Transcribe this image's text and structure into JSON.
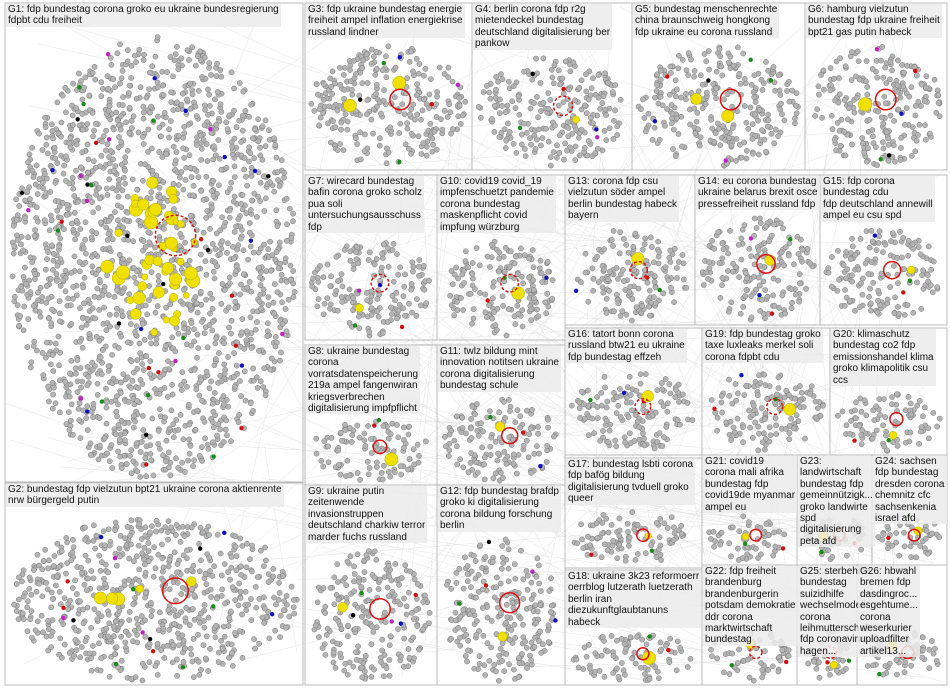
{
  "groups": [
    {
      "lines": [
        "G1: fdp bundestag corona groko eu ukraine bundesregierung",
        "fdpbt cdu freiheit"
      ]
    },
    {
      "lines": [
        "G2: bundestag fdp vielzutun bpt21 ukraine corona aktienrente",
        "nrw bürgergeld putin"
      ]
    },
    {
      "lines": [
        "G3: fdp ukraine bundestag energie",
        "freiheit ampel inflation energiekrise",
        "russland lindner"
      ]
    },
    {
      "lines": [
        "G4: berlin corona fdp r2g",
        "mietendeckel bundestag",
        "deutschland digitalisierung ber",
        "pankow"
      ]
    },
    {
      "lines": [
        "G5: bundestag menschenrechte",
        "china braunschweig hongkong",
        "fdp ukraine eu corona russland"
      ]
    },
    {
      "lines": [
        "G6: hamburg vielzutun",
        "bundestag fdp ukraine freiheit",
        "bpt21 gas putin habeck"
      ]
    },
    {
      "lines": [
        "G7: wirecard bundestag",
        "bafin corona groko scholz",
        "pua soli",
        "untersuchungsausschuss",
        "fdp"
      ]
    },
    {
      "lines": [
        "G8: ukraine bundestag",
        "corona",
        "vorratsdatenspeicherung",
        "219a ampel fangenwiran",
        "kriegsverbrechen",
        "digitalisierung impfpflicht"
      ]
    },
    {
      "lines": [
        "G9: ukraine putin",
        "zeitenwende",
        "invasionstruppen",
        "deutschland charkiw terror",
        "marder fuchs russland"
      ]
    },
    {
      "lines": [
        "G10: covid19 covid_19",
        "impfenschuetzt pandemie",
        "corona bundestag",
        "maskenpflicht covid",
        "impfung würzburg"
      ]
    },
    {
      "lines": [
        "G11: twlz bildung mint",
        "innovation notitsen ukraine",
        "corona digitalisierung",
        "bundestag schule"
      ]
    },
    {
      "lines": [
        "G12: fdp bundestag brafdp",
        "groko ki digitalisierung",
        "corona bildung forschung",
        "berlin"
      ]
    },
    {
      "lines": [
        "G13: corona fdp csu",
        "vielzutun söder ampel",
        "berlin bundestag habeck",
        "bayern"
      ]
    },
    {
      "lines": [
        "G14: eu corona bundestag",
        "ukraine belarus brexit osce",
        "pressefreiheit russland fdp"
      ]
    },
    {
      "lines": [
        "G15: fdp corona",
        "bundestag cdu",
        "fdp deutschland annewill",
        "ampel eu csu spd"
      ]
    },
    {
      "lines": [
        "G16: tatort bonn corona",
        "russland btw21 eu ukraine",
        "fdp bundestag effzeh"
      ]
    },
    {
      "lines": [
        "G17: bundestag lsbti corona",
        "fdp bafög bildung",
        "digitalisierung tvduell groko",
        "queer"
      ]
    },
    {
      "lines": [
        "G18: ukraine 3k23 reformoerr",
        "oerrblog lutzerath luetzerath",
        "berlin iran",
        "diezukunftglaubtanuns",
        "habeck"
      ]
    },
    {
      "lines": [
        "G19: fdp bundestag groko",
        "taxe luxleaks merkel soli",
        "corona fdpbt cdu"
      ]
    },
    {
      "lines": [
        "G20: klimaschutz",
        "bundestag co2 fdp",
        "emissionshandel klima",
        "groko klimapolitik csu",
        "ccs"
      ]
    },
    {
      "lines": [
        "G21: covid19",
        "corona mali afrika",
        "bundestag fdp",
        "covid19de myanmar",
        "ampel eu"
      ]
    },
    {
      "lines": [
        "G22: fdp freiheit",
        "brandenburg",
        "brandenburgerin",
        "potsdam demokratie",
        "ddr corona",
        "marktwirtschaft",
        "bundestag"
      ]
    },
    {
      "lines": [
        "G23:",
        "landwirtschaft",
        "bundestag fdp",
        "gemeinnützigk...",
        "groko landwirte",
        "spd",
        "digitalisierung",
        "peta afd"
      ]
    },
    {
      "lines": [
        "G24: sachsen",
        "fdp bundestag",
        "dresden corona",
        "chemnitz cfc",
        "sachsenkenia",
        "israel afd"
      ]
    },
    {
      "lines": [
        "G25: sterbehilfe",
        "bundestag",
        "suizidhilfe",
        "wechselmodell",
        "corona",
        "leihmutterschaft",
        "fdp coronavirus",
        "hagen..."
      ]
    },
    {
      "lines": [
        "G26: hbwahl",
        "bremen fdp",
        "dasdingroc...",
        "esgehtume...",
        "corona",
        "weserkurier",
        "uploadfilter",
        "artikel13..."
      ]
    }
  ]
}
